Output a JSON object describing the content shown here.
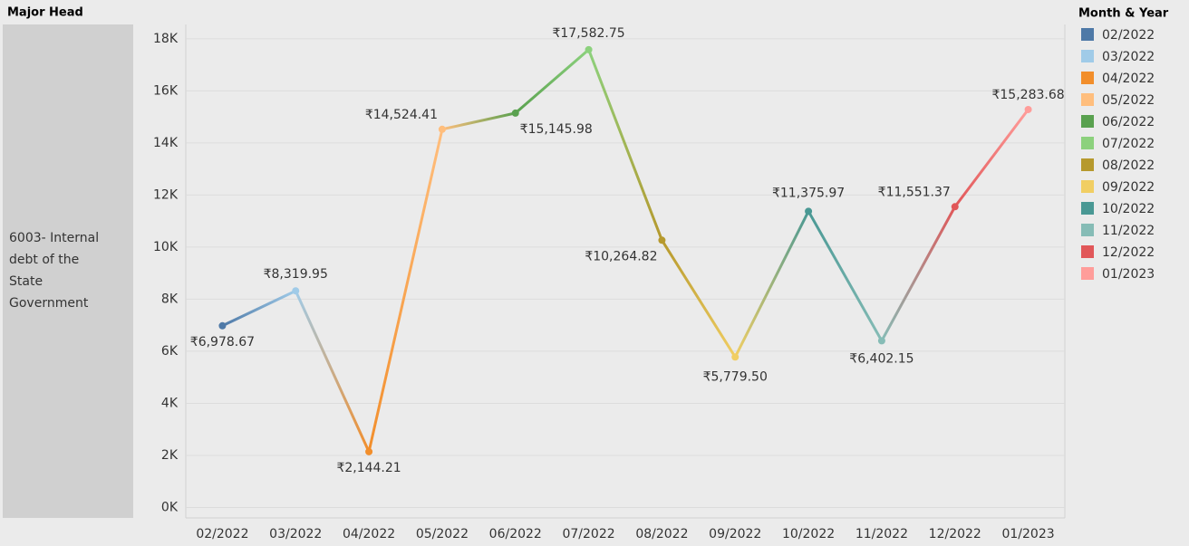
{
  "chart_data": {
    "type": "line",
    "row_header": "Major Head",
    "row_label": "6003- Internal debt of the State Government",
    "legend_title": "Month & Year",
    "categories": [
      "02/2022",
      "03/2022",
      "04/2022",
      "05/2022",
      "06/2022",
      "07/2022",
      "08/2022",
      "09/2022",
      "10/2022",
      "11/2022",
      "12/2022",
      "01/2023"
    ],
    "series": [
      {
        "name": "6003- Internal debt of the State Government",
        "values": [
          6978.67,
          8319.95,
          2144.21,
          14524.41,
          15145.98,
          17582.75,
          10264.82,
          5779.5,
          11375.97,
          6402.15,
          11551.37,
          15283.68
        ],
        "value_labels": [
          "₹6,978.67",
          "₹8,319.95",
          "₹2,144.21",
          "₹14,524.41",
          "₹15,145.98",
          "₹17,582.75",
          "₹10,264.82",
          "₹5,779.50",
          "₹11,375.97",
          "₹6,402.15",
          "₹11,551.37",
          "₹15,283.68"
        ]
      }
    ],
    "point_colors": [
      "#4e79a7",
      "#a0cbe8",
      "#f28e2b",
      "#ffbe7d",
      "#59a14f",
      "#8cd17d",
      "#b6992d",
      "#f1ce63",
      "#499894",
      "#86bcb6",
      "#e15759",
      "#ff9d9a"
    ],
    "ylim": [
      -400,
      18550
    ],
    "yticks": [
      {
        "value": 0,
        "label": "0K"
      },
      {
        "value": 2000,
        "label": "2K"
      },
      {
        "value": 4000,
        "label": "4K"
      },
      {
        "value": 6000,
        "label": "6K"
      },
      {
        "value": 8000,
        "label": "8K"
      },
      {
        "value": 10000,
        "label": "10K"
      },
      {
        "value": 12000,
        "label": "12K"
      },
      {
        "value": 14000,
        "label": "14K"
      },
      {
        "value": 16000,
        "label": "16K"
      },
      {
        "value": 18000,
        "label": "18K"
      }
    ],
    "grid": true
  }
}
